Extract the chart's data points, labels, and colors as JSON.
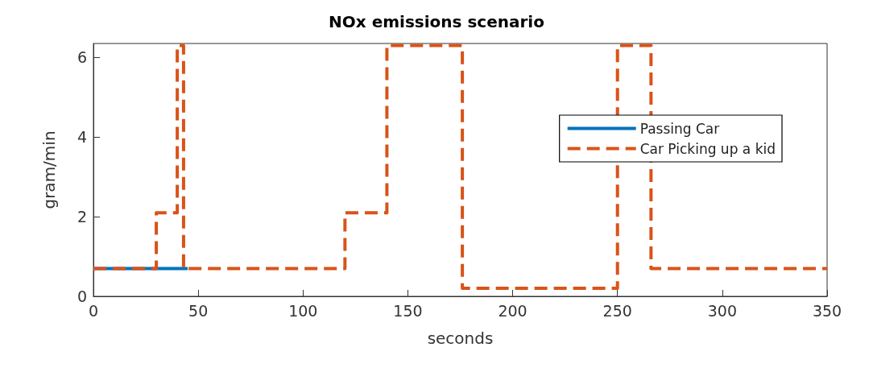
{
  "chart_data": {
    "type": "step",
    "title": "NOx emissions scenario",
    "xlabel": "seconds",
    "ylabel": "gram/min",
    "series": [
      {
        "name": "Passing Car",
        "color": "#0072bd",
        "line_style": "solid",
        "x": [
          0,
          45
        ],
        "values": [
          0.7,
          0.7
        ]
      },
      {
        "name": "Car Picking up a kid",
        "color": "#d95319",
        "line_style": "dashed",
        "x": [
          0,
          30,
          40,
          43,
          120,
          140,
          176,
          250,
          266,
          350
        ],
        "values": [
          0.7,
          2.1,
          6.3,
          0.7,
          2.1,
          6.3,
          0.2,
          6.3,
          0.7,
          0.7
        ]
      }
    ],
    "xlim": [
      0,
      350
    ],
    "xticks": [
      0,
      50,
      100,
      150,
      200,
      250,
      300,
      350
    ],
    "ylim": [
      0,
      6.35
    ],
    "yticks": [
      0,
      2,
      4,
      6
    ],
    "grid": false,
    "legend": "right",
    "marker": "none"
  }
}
